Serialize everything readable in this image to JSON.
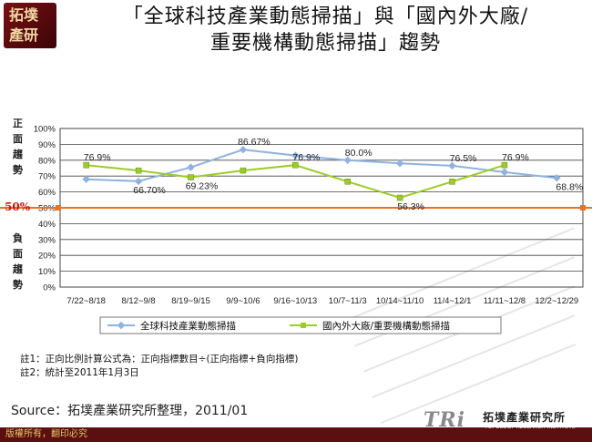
{
  "logo": {
    "line1": "拓墣",
    "line2": "產研"
  },
  "title": {
    "line1": "「全球科技產業動態掃描」與「國內外大廠/",
    "line2": "重要機構動態掃描」趨勢"
  },
  "side_labels": {
    "positive": [
      "正",
      "面",
      "趨",
      "勢"
    ],
    "negative": [
      "負",
      "面",
      "趨",
      "勢"
    ]
  },
  "chart_data": {
    "type": "line",
    "categories": [
      "7/22~8/18",
      "8/12~9/8",
      "8/19~9/15",
      "9/9~10/6",
      "9/16~10/13",
      "10/7~11/3",
      "10/14~11/10",
      "11/4~12/1",
      "11/11~12/8",
      "12/2~12/29"
    ],
    "x_tick_label_text": "7/22~8/18 8/12~9/8 8/19~9/15 9/9~10/6 9/16~10/13 10/7~11/3 10/14~11/10 11/4~12/1 11/11~12/8 12/2~12/29",
    "y_ticks": [
      "0%",
      "10%",
      "20%",
      "30%",
      "40%",
      "50%",
      "60%",
      "70%",
      "80%",
      "90%",
      "100%"
    ],
    "ylim": [
      0,
      100
    ],
    "grid": true,
    "legend_position": "bottom",
    "reference_line": {
      "value": 50,
      "label": "50%",
      "color": "#f07020"
    },
    "series": [
      {
        "name": "全球科技產業動態掃描",
        "color": "#8fb3e0",
        "marker": "diamond",
        "values": [
          68,
          66.7,
          75.5,
          86.67,
          83,
          80.0,
          78,
          76.5,
          72.5,
          68.8
        ],
        "labels": [
          null,
          "66.70%",
          null,
          "86.67%",
          null,
          "80.0%",
          null,
          "76.5%",
          null,
          "68.8%"
        ]
      },
      {
        "name": "國內外大廠/重要機構動態掃描",
        "color": "#9ccc28",
        "marker": "square",
        "values": [
          76.9,
          73.5,
          69.23,
          73.5,
          76.9,
          66.5,
          56.3,
          66.5,
          76.9,
          null
        ],
        "labels": [
          "76.9%",
          null,
          "69.23%",
          null,
          "76.9%",
          null,
          "56.3%",
          null,
          "76.9%",
          null
        ]
      }
    ]
  },
  "notes": {
    "line1": "註1：正向比例計算公式為：正向指標數目÷(正向指標+負向指標)",
    "line2": "註2：統計至2011年1月3日"
  },
  "source": "Source：拓墣產業研究所整理，2011/01",
  "footer": {
    "copyright": "版權所有，翻印必究",
    "tri_logo": "TRi",
    "org_name": "拓墣產業研究所",
    "org_name_en": "TOPOLOGY RESEARCH INSTITUTE"
  }
}
